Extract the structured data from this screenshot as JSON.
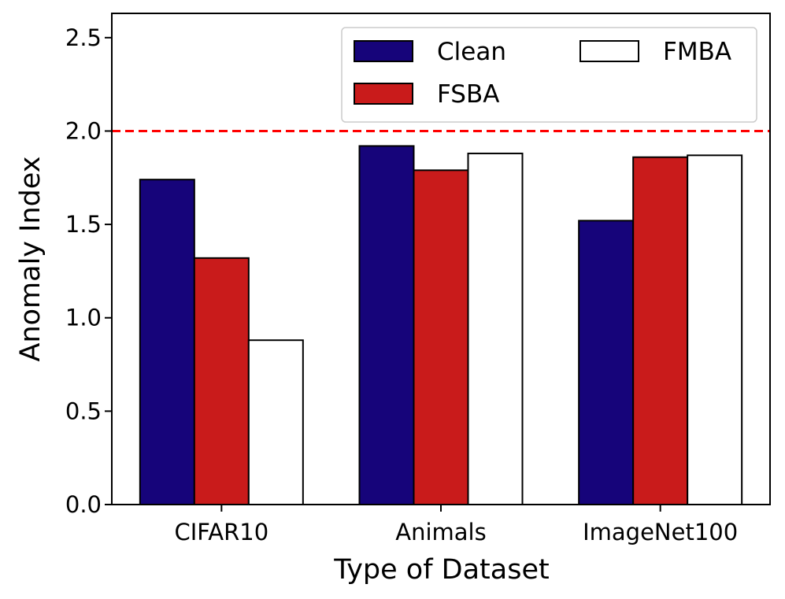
{
  "chart_data": {
    "type": "bar",
    "title": "",
    "xlabel": "Type of Dataset",
    "ylabel": "Anomaly Index",
    "categories": [
      "CIFAR10",
      "Animals",
      "ImageNet100"
    ],
    "series": [
      {
        "name": "Clean",
        "values": [
          1.74,
          1.92,
          1.52
        ],
        "color": "#16047a"
      },
      {
        "name": "FSBA",
        "values": [
          1.32,
          1.79,
          1.86
        ],
        "color": "#c91b1b"
      },
      {
        "name": "FMBA",
        "values": [
          0.88,
          1.88,
          1.87
        ],
        "color": "#ffffff"
      }
    ],
    "ylim": [
      0,
      2.63
    ],
    "yticks": [
      0.0,
      0.5,
      1.0,
      1.5,
      2.0,
      2.5
    ],
    "ytick_labels": [
      "0.0",
      "0.5",
      "1.0",
      "1.5",
      "2.0",
      "2.5"
    ],
    "threshold": {
      "value": 2.0,
      "color": "#ff0000",
      "style": "dashed"
    },
    "legend": {
      "placement": "top-right",
      "columns": 2
    },
    "grid": false
  }
}
